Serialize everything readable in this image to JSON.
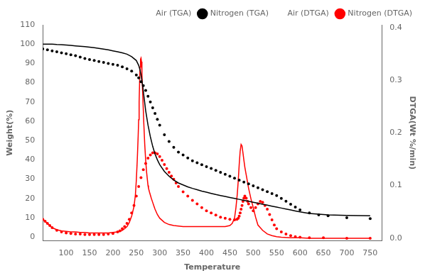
{
  "chart_data": {
    "type": "line",
    "xlabel": "Temperature",
    "ylabel": "Weight(%)",
    "y2label": "DTGA(Wt %/min)",
    "xlim": [
      50,
      775
    ],
    "ylim": [
      -2,
      110
    ],
    "y2lim": [
      -0.005,
      0.405
    ],
    "xticks": [
      100,
      150,
      200,
      250,
      300,
      350,
      400,
      450,
      500,
      550,
      600,
      650,
      700,
      750
    ],
    "yticks": [
      0,
      10,
      20,
      30,
      40,
      50,
      60,
      70,
      80,
      90,
      100,
      110
    ],
    "y2ticks": [
      {
        "value": 0.0,
        "label": "0.0"
      },
      0.1,
      0.2,
      0.3,
      0.4
    ],
    "grid": false,
    "legend": "upper right",
    "series": [
      {
        "name": "Air (TGA)",
        "color": "black",
        "marker": "none",
        "line_style": "solid",
        "axis": "y",
        "x": [
          50,
          60,
          70,
          80,
          90,
          100,
          110,
          120,
          130,
          140,
          150,
          160,
          170,
          180,
          190,
          200,
          210,
          220,
          230,
          240,
          250,
          255,
          258,
          260,
          262,
          264,
          266,
          268,
          270,
          275,
          280,
          285,
          290,
          295,
          300,
          310,
          320,
          330,
          340,
          350,
          360,
          370,
          380,
          390,
          400,
          410,
          420,
          430,
          440,
          450,
          460,
          470,
          480,
          490,
          500,
          510,
          520,
          530,
          540,
          550,
          560,
          570,
          580,
          590,
          600,
          620,
          640,
          660,
          700,
          750
        ],
        "values": [
          100,
          100,
          100,
          99.8,
          99.7,
          99.5,
          99.3,
          99.1,
          98.9,
          98.7,
          98.4,
          98.1,
          97.8,
          97.4,
          97.0,
          96.5,
          96.0,
          95.5,
          94.8,
          93.5,
          91.5,
          89.0,
          86.5,
          84.0,
          81.0,
          77.5,
          73.5,
          69.5,
          65.5,
          58.0,
          52.0,
          47.0,
          43.0,
          40.0,
          37.5,
          34.0,
          31.5,
          29.5,
          28.0,
          27.0,
          26.0,
          25.2,
          24.5,
          23.8,
          23.2,
          22.6,
          22.0,
          21.5,
          21.0,
          20.5,
          20.0,
          19.5,
          19.0,
          18.5,
          18.0,
          17.5,
          17.0,
          16.5,
          16.0,
          15.5,
          15.0,
          14.5,
          14.0,
          13.5,
          13.0,
          12.2,
          11.8,
          11.5,
          11.2,
          11.0
        ]
      },
      {
        "name": "Nitrogen (TGA)",
        "color": "black",
        "marker": "dot",
        "line_style": "none",
        "axis": "y",
        "x": [
          50,
          60,
          70,
          80,
          90,
          100,
          110,
          120,
          130,
          140,
          150,
          160,
          170,
          180,
          190,
          200,
          210,
          220,
          230,
          240,
          250,
          255,
          260,
          265,
          270,
          275,
          280,
          285,
          290,
          295,
          300,
          310,
          320,
          330,
          340,
          350,
          360,
          370,
          380,
          390,
          400,
          410,
          420,
          430,
          440,
          450,
          460,
          470,
          480,
          490,
          500,
          510,
          520,
          530,
          540,
          550,
          560,
          570,
          580,
          590,
          600,
          620,
          640,
          660,
          700,
          750
        ],
        "values": [
          97.5,
          97.0,
          96.5,
          96.0,
          95.5,
          95.0,
          94.5,
          94.0,
          93.3,
          92.5,
          92.0,
          91.5,
          91.0,
          90.5,
          90.0,
          89.5,
          89.0,
          88.2,
          87.2,
          86.0,
          84.0,
          82.5,
          80.5,
          78.5,
          76.0,
          73.0,
          70.0,
          67.0,
          64.0,
          61.0,
          58.0,
          53.0,
          49.5,
          46.5,
          44.0,
          42.5,
          41.0,
          39.5,
          38.5,
          37.5,
          36.5,
          35.5,
          34.5,
          33.5,
          32.5,
          31.5,
          30.5,
          29.5,
          28.5,
          27.5,
          26.5,
          25.5,
          24.5,
          23.5,
          22.5,
          21.5,
          20.0,
          18.5,
          17.0,
          15.5,
          14.0,
          12.5,
          11.5,
          11.0,
          10.0,
          9.5
        ]
      },
      {
        "name": "Air (DTGA)",
        "color": "red",
        "marker": "none",
        "line_style": "solid",
        "axis": "y2",
        "x": [
          50,
          55,
          60,
          65,
          70,
          80,
          90,
          100,
          110,
          120,
          130,
          140,
          150,
          160,
          170,
          180,
          190,
          200,
          210,
          215,
          220,
          225,
          230,
          235,
          240,
          245,
          248,
          250,
          252,
          254,
          255,
          256,
          257,
          258,
          259,
          260,
          261,
          262,
          264,
          266,
          268,
          270,
          272,
          274,
          275,
          276,
          278,
          280,
          282,
          285,
          288,
          290,
          295,
          300,
          310,
          320,
          330,
          340,
          350,
          360,
          370,
          380,
          390,
          400,
          410,
          420,
          430,
          440,
          450,
          455,
          460,
          463,
          466,
          468,
          470,
          472,
          474,
          476,
          478,
          480,
          482,
          484,
          486,
          488,
          490,
          495,
          500,
          505,
          510,
          520,
          530,
          540,
          550,
          560,
          580,
          600,
          620,
          650,
          700,
          750
        ],
        "values": [
          0.036,
          0.032,
          0.028,
          0.024,
          0.02,
          0.016,
          0.014,
          0.013,
          0.012,
          0.012,
          0.011,
          0.011,
          0.01,
          0.01,
          0.01,
          0.01,
          0.01,
          0.011,
          0.012,
          0.013,
          0.015,
          0.018,
          0.022,
          0.03,
          0.042,
          0.06,
          0.082,
          0.11,
          0.148,
          0.195,
          0.225,
          0.258,
          0.295,
          0.325,
          0.34,
          0.342,
          0.335,
          0.312,
          0.265,
          0.218,
          0.178,
          0.148,
          0.125,
          0.108,
          0.1,
          0.095,
          0.088,
          0.082,
          0.076,
          0.068,
          0.06,
          0.055,
          0.045,
          0.038,
          0.03,
          0.026,
          0.024,
          0.023,
          0.022,
          0.022,
          0.022,
          0.022,
          0.022,
          0.022,
          0.022,
          0.022,
          0.022,
          0.022,
          0.024,
          0.028,
          0.038,
          0.058,
          0.085,
          0.11,
          0.14,
          0.165,
          0.178,
          0.175,
          0.162,
          0.148,
          0.135,
          0.125,
          0.115,
          0.105,
          0.095,
          0.075,
          0.058,
          0.04,
          0.025,
          0.015,
          0.008,
          0.005,
          0.003,
          0.002,
          0.001,
          0.001,
          0.0,
          0.0,
          0.0,
          0.0
        ]
      },
      {
        "name": "Nitrogen (DTGA)",
        "color": "red",
        "marker": "dot",
        "line_style": "none",
        "axis": "y2",
        "x": [
          50,
          55,
          60,
          65,
          70,
          80,
          90,
          100,
          110,
          120,
          130,
          140,
          150,
          160,
          170,
          180,
          190,
          200,
          210,
          215,
          220,
          225,
          230,
          235,
          240,
          245,
          250,
          255,
          260,
          265,
          270,
          275,
          280,
          285,
          290,
          295,
          300,
          305,
          310,
          315,
          320,
          325,
          330,
          335,
          340,
          350,
          360,
          370,
          380,
          390,
          400,
          410,
          420,
          430,
          440,
          450,
          460,
          465,
          468,
          470,
          472,
          474,
          476,
          478,
          480,
          482,
          485,
          488,
          490,
          495,
          500,
          505,
          510,
          515,
          520,
          525,
          530,
          535,
          540,
          545,
          550,
          560,
          570,
          580,
          590,
          600,
          620,
          650,
          700,
          750
        ],
        "values": [
          0.036,
          0.032,
          0.028,
          0.024,
          0.02,
          0.015,
          0.012,
          0.01,
          0.009,
          0.008,
          0.008,
          0.007,
          0.007,
          0.007,
          0.007,
          0.007,
          0.008,
          0.009,
          0.012,
          0.014,
          0.018,
          0.022,
          0.028,
          0.036,
          0.048,
          0.062,
          0.08,
          0.098,
          0.115,
          0.13,
          0.142,
          0.152,
          0.158,
          0.162,
          0.162,
          0.16,
          0.155,
          0.148,
          0.14,
          0.132,
          0.125,
          0.118,
          0.112,
          0.105,
          0.098,
          0.088,
          0.08,
          0.072,
          0.065,
          0.058,
          0.052,
          0.048,
          0.044,
          0.04,
          0.038,
          0.036,
          0.035,
          0.036,
          0.038,
          0.042,
          0.048,
          0.055,
          0.062,
          0.07,
          0.076,
          0.08,
          0.076,
          0.07,
          0.065,
          0.058,
          0.052,
          0.058,
          0.065,
          0.07,
          0.068,
          0.062,
          0.055,
          0.045,
          0.035,
          0.025,
          0.018,
          0.012,
          0.008,
          0.005,
          0.003,
          0.002,
          0.001,
          0.001,
          0.0,
          0.0
        ]
      }
    ]
  }
}
